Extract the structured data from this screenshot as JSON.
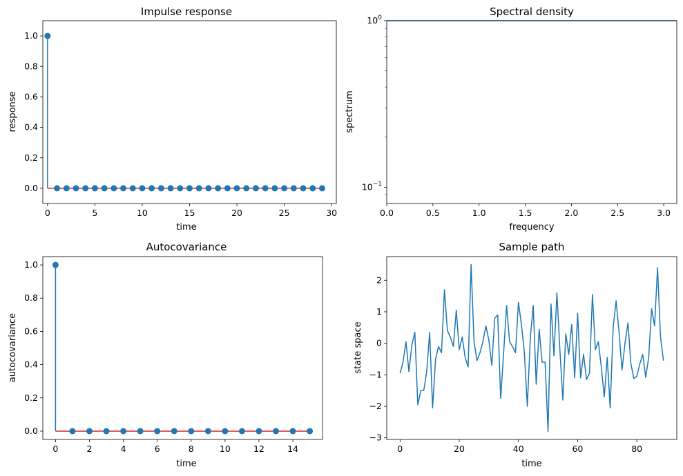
{
  "chart_data": [
    {
      "type": "stem",
      "title": "Impulse response",
      "xlabel": "time",
      "ylabel": "response",
      "xlim": [
        -0.5,
        30.5
      ],
      "ylim": [
        -0.1,
        1.1
      ],
      "xticks": [
        0,
        5,
        10,
        15,
        20,
        25,
        30
      ],
      "yticks": [
        0.0,
        0.2,
        0.4,
        0.6,
        0.8,
        1.0
      ],
      "x": [
        0,
        1,
        2,
        3,
        4,
        5,
        6,
        7,
        8,
        9,
        10,
        11,
        12,
        13,
        14,
        15,
        16,
        17,
        18,
        19,
        20,
        21,
        22,
        23,
        24,
        25,
        26,
        27,
        28,
        29
      ],
      "y": [
        1,
        0,
        0,
        0,
        0,
        0,
        0,
        0,
        0,
        0,
        0,
        0,
        0,
        0,
        0,
        0,
        0,
        0,
        0,
        0,
        0,
        0,
        0,
        0,
        0,
        0,
        0,
        0,
        0,
        0
      ],
      "marker_color": "#1f77b4",
      "baseline_color": "#d62728"
    },
    {
      "type": "line",
      "title": "Spectral density",
      "xlabel": "frequency",
      "ylabel": "spectrum",
      "yscale": "log",
      "xlim": [
        0,
        3.14159
      ],
      "ylim": [
        0.08,
        1.0
      ],
      "xticks": [
        0.0,
        0.5,
        1.0,
        1.5,
        2.0,
        2.5,
        3.0
      ],
      "ytick_labels": [
        "10^0",
        "10^-1"
      ],
      "x": [
        0,
        3.14159
      ],
      "y": [
        1.0,
        1.0
      ],
      "line_color": "#1f77b4"
    },
    {
      "type": "stem",
      "title": "Autocovariance",
      "xlabel": "time",
      "ylabel": "autocovariance",
      "xlim": [
        -0.75,
        15.75
      ],
      "ylim": [
        -0.05,
        1.05
      ],
      "xticks": [
        0,
        2,
        4,
        6,
        8,
        10,
        12,
        14
      ],
      "yticks": [
        0.0,
        0.2,
        0.4,
        0.6,
        0.8,
        1.0
      ],
      "x": [
        0,
        1,
        2,
        3,
        4,
        5,
        6,
        7,
        8,
        9,
        10,
        11,
        12,
        13,
        14,
        15
      ],
      "y": [
        1,
        0,
        0,
        0,
        0,
        0,
        0,
        0,
        0,
        0,
        0,
        0,
        0,
        0,
        0,
        0
      ],
      "marker_color": "#1f77b4",
      "baseline_color": "#d62728"
    },
    {
      "type": "line",
      "title": "Sample path",
      "xlabel": "time",
      "ylabel": "state space",
      "xlim": [
        -4.5,
        93.5
      ],
      "ylim": [
        -3.05,
        2.75
      ],
      "xticks": [
        0,
        20,
        40,
        60,
        80
      ],
      "yticks": [
        -3,
        -2,
        -1,
        0,
        1,
        2
      ],
      "x": [
        0,
        1,
        2,
        3,
        4,
        5,
        6,
        7,
        8,
        9,
        10,
        11,
        12,
        13,
        14,
        15,
        16,
        17,
        18,
        19,
        20,
        21,
        22,
        23,
        24,
        25,
        26,
        27,
        28,
        29,
        30,
        31,
        32,
        33,
        34,
        35,
        36,
        37,
        38,
        39,
        40,
        41,
        42,
        43,
        44,
        45,
        46,
        47,
        48,
        49,
        50,
        51,
        52,
        53,
        54,
        55,
        56,
        57,
        58,
        59,
        60,
        61,
        62,
        63,
        64,
        65,
        66,
        67,
        68,
        69,
        70,
        71,
        72,
        73,
        74,
        75,
        76,
        77,
        78,
        79,
        80,
        81,
        82,
        83,
        84,
        85,
        86,
        87,
        88,
        89
      ],
      "y": [
        -0.95,
        -0.6,
        0.05,
        -0.9,
        -0.05,
        0.35,
        -1.95,
        -1.5,
        -1.5,
        -0.9,
        0.35,
        -2.05,
        -0.5,
        -0.1,
        -0.3,
        1.7,
        0.4,
        0.2,
        -0.1,
        1.05,
        -0.2,
        0.2,
        -0.45,
        -0.75,
        2.5,
        0.05,
        -0.55,
        -0.3,
        0.05,
        0.55,
        0.1,
        -0.7,
        0.8,
        0.9,
        -1.75,
        -0.3,
        1.2,
        0.05,
        -0.1,
        -0.3,
        1.3,
        0.6,
        -0.3,
        -2.0,
        0.15,
        1.2,
        -1.3,
        0.45,
        -0.6,
        -0.6,
        -2.8,
        1.25,
        -0.4,
        1.6,
        -0.2,
        -1.8,
        0.3,
        -0.35,
        0.6,
        -1.1,
        0.95,
        -1.1,
        -0.35,
        -1.15,
        -0.95,
        1.55,
        -0.2,
        0.05,
        -0.75,
        -1.7,
        -0.45,
        -2.05,
        0.5,
        1.35,
        0.35,
        -0.85,
        0.0,
        0.65,
        -0.65,
        -1.12,
        -1.05,
        -0.65,
        -0.35,
        -1.08,
        -0.45,
        1.1,
        0.55,
        2.4,
        0.2,
        -0.55
      ],
      "line_color": "#1f77b4"
    }
  ]
}
